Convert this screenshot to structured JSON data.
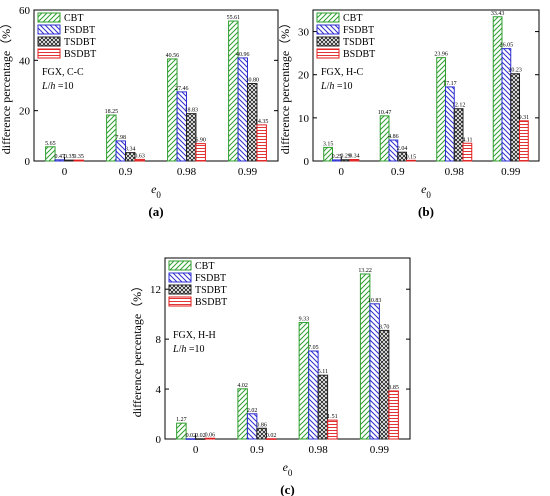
{
  "legend": [
    "CBT",
    "FSDBT",
    "TSDBT",
    "BSDBT"
  ],
  "colors": {
    "CBT": "#2e9e2e",
    "FSDBT": "#2f2fd0",
    "TSDBT": "#222222",
    "BSDBT": "#e01e1e"
  },
  "chart_data": [
    {
      "type": "bar",
      "caption": "(a)",
      "annotation": [
        "FGX, C-C",
        "L/h =10"
      ],
      "xlabel": "e0",
      "ylabel": "difference percentage（%）",
      "categories": [
        "0",
        "0.9",
        "0.98",
        "0.99"
      ],
      "ylim": [
        0,
        60
      ],
      "yticks": [
        "0",
        "20",
        "40",
        "60"
      ],
      "series": [
        {
          "name": "CBT",
          "values": [
            5.65,
            18.25,
            40.56,
            55.61
          ],
          "labels": [
            "5.65",
            "18.25",
            "40.56",
            "55.61"
          ]
        },
        {
          "name": "FSDBT",
          "values": [
            0.47,
            7.98,
            27.46,
            40.96
          ],
          "labels": [
            "0.47",
            "7.98",
            "27.46",
            "40.96"
          ]
        },
        {
          "name": "TSDBT",
          "values": [
            0.35,
            3.34,
            18.83,
            30.8
          ],
          "labels": [
            "0.35",
            "3.34",
            "18.83",
            "30.80"
          ]
        },
        {
          "name": "BSDBT",
          "values": [
            0.35,
            0.63,
            6.9,
            14.35
          ],
          "labels": [
            "0.35",
            "0.63",
            "6.90",
            "14.35"
          ]
        }
      ]
    },
    {
      "type": "bar",
      "caption": "(b)",
      "annotation": [
        "FGX, H-C",
        "L/h =10"
      ],
      "xlabel": "e0",
      "ylabel": "difference percentage（%）",
      "categories": [
        "0",
        "0.9",
        "0.98",
        "0.99"
      ],
      "ylim": [
        0,
        35
      ],
      "yticks": [
        "0",
        "10",
        "20",
        "30"
      ],
      "series": [
        {
          "name": "CBT",
          "values": [
            3.15,
            10.47,
            23.96,
            33.43
          ],
          "labels": [
            "3.15",
            "10.47",
            "23.96",
            "33.43"
          ]
        },
        {
          "name": "FSDBT",
          "values": [
            0.25,
            4.86,
            17.17,
            26.05
          ],
          "labels": [
            "0.25",
            "4.86",
            "17.17",
            "26.05"
          ]
        },
        {
          "name": "TSDBT",
          "values": [
            0.29,
            2.04,
            12.12,
            20.23
          ],
          "labels": [
            "0.29",
            "2.04",
            "12.12",
            "20.23"
          ]
        },
        {
          "name": "BSDBT",
          "values": [
            0.34,
            0.15,
            4.11,
            9.31
          ],
          "labels": [
            "0.34",
            "0.15",
            "4.11",
            "9.31"
          ]
        }
      ]
    },
    {
      "type": "bar",
      "caption": "(c)",
      "annotation": [
        "FGX, H-H",
        "L/h =10"
      ],
      "xlabel": "e0",
      "ylabel": "difference percentage（%）",
      "categories": [
        "0",
        "0.9",
        "0.98",
        "0.99"
      ],
      "ylim": [
        0,
        14.5
      ],
      "yticks": [
        "0",
        "4",
        "8",
        "12"
      ],
      "series": [
        {
          "name": "CBT",
          "values": [
            1.27,
            4.02,
            9.33,
            13.22
          ],
          "labels": [
            "1.27",
            "4.02",
            "9.33",
            "13.22"
          ]
        },
        {
          "name": "FSDBT",
          "values": [
            0.02,
            2.02,
            7.05,
            10.83
          ],
          "labels": [
            "0.02",
            "2.02",
            "7.05",
            "10.83"
          ]
        },
        {
          "name": "TSDBT",
          "values": [
            0.02,
            0.86,
            5.11,
            8.7
          ],
          "labels": [
            "0.02",
            "0.86",
            "5.11",
            "8.70"
          ]
        },
        {
          "name": "BSDBT",
          "values": [
            0.06,
            0.02,
            1.51,
            3.85
          ],
          "labels": [
            "0.06",
            "0.02",
            "1.51",
            "3.85"
          ]
        }
      ]
    }
  ]
}
